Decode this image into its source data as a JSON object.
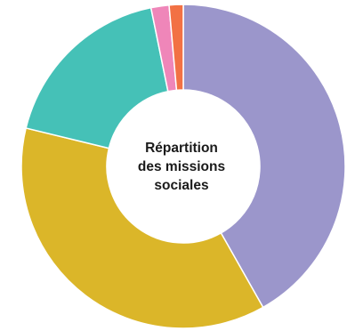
{
  "chart_data": {
    "type": "pie",
    "variant": "donut",
    "title_lines": [
      "Répartition",
      "des missions",
      "sociales"
    ],
    "legend": "none",
    "slices": [
      {
        "value": 41.8,
        "color": "#9b96cb"
      },
      {
        "value": 37.0,
        "color": "#dbb629"
      },
      {
        "value": 18.0,
        "color": "#45c1b7"
      },
      {
        "value": 1.8,
        "color": "#ef86b9"
      },
      {
        "value": 1.4,
        "color": "#f27144"
      }
    ]
  }
}
